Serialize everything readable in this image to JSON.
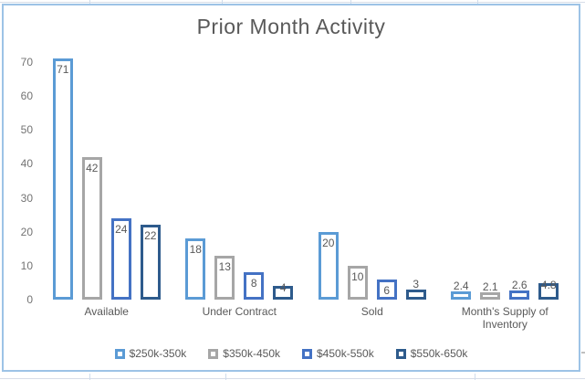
{
  "chart_data": {
    "type": "bar",
    "title": "Prior Month Activity",
    "categories": [
      "Available",
      "Under Contract",
      "Sold",
      "Month's Supply of Inventory"
    ],
    "series": [
      {
        "name": "$250k-350k",
        "color": "#5B9BD5",
        "values": [
          71,
          18,
          20,
          2.4
        ]
      },
      {
        "name": "$350k-450k",
        "color": "#A6A6A6",
        "values": [
          42,
          13,
          10,
          2.1
        ]
      },
      {
        "name": "$450k-550k",
        "color": "#4472C4",
        "values": [
          24,
          8,
          6,
          2.6
        ]
      },
      {
        "name": "$550k-650k",
        "color": "#2E5B8C",
        "values": [
          22,
          4,
          3,
          4.8
        ]
      }
    ],
    "ylim": [
      0,
      70
    ],
    "yticks": [
      0,
      10,
      20,
      30,
      40,
      50,
      60,
      70
    ],
    "legend_position": "bottom",
    "gridlines": false,
    "bar_style": "outlined-hollow",
    "data_labels": true
  },
  "colors": {
    "title_text": "#595959",
    "axis_text": "#737373",
    "label_text": "#595959",
    "chart_border": "#9DC3E6"
  }
}
